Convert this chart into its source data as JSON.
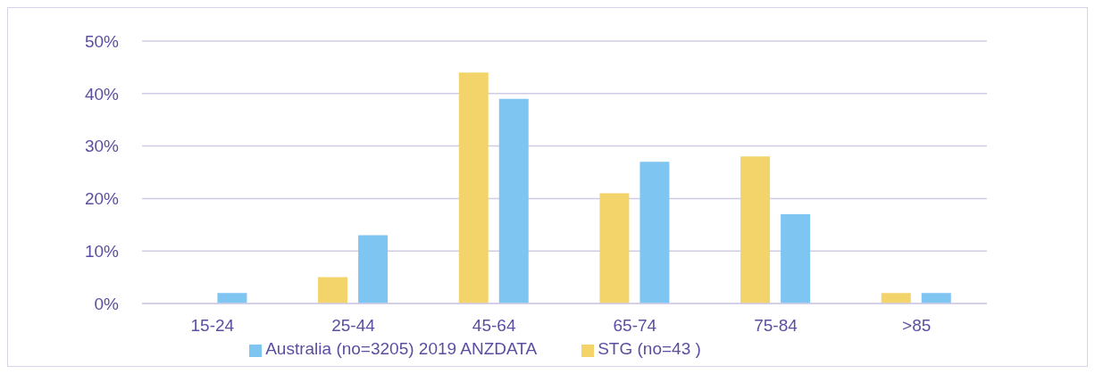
{
  "chart_data": {
    "type": "bar",
    "categories": [
      "15-24",
      "25-44",
      "45-64",
      "65-74",
      "75-84",
      ">85"
    ],
    "series": [
      {
        "name": "STG (no=43 )",
        "color": "#f2d46b",
        "values": [
          0,
          5,
          44,
          21,
          28,
          2
        ]
      },
      {
        "name": "Australia (no=3205) 2019 ANZDATA",
        "color": "#7fc5f2",
        "values": [
          2,
          13,
          39,
          27,
          17,
          2
        ]
      }
    ],
    "ylim": [
      0,
      50
    ],
    "yticks": [
      {
        "value": 0,
        "label": "0%"
      },
      {
        "value": 10,
        "label": "10%"
      },
      {
        "value": 20,
        "label": "20%"
      },
      {
        "value": 30,
        "label": "30%"
      },
      {
        "value": 40,
        "label": "40%"
      },
      {
        "value": 50,
        "label": "50%"
      }
    ],
    "grid": "y",
    "legend": "bottom"
  }
}
